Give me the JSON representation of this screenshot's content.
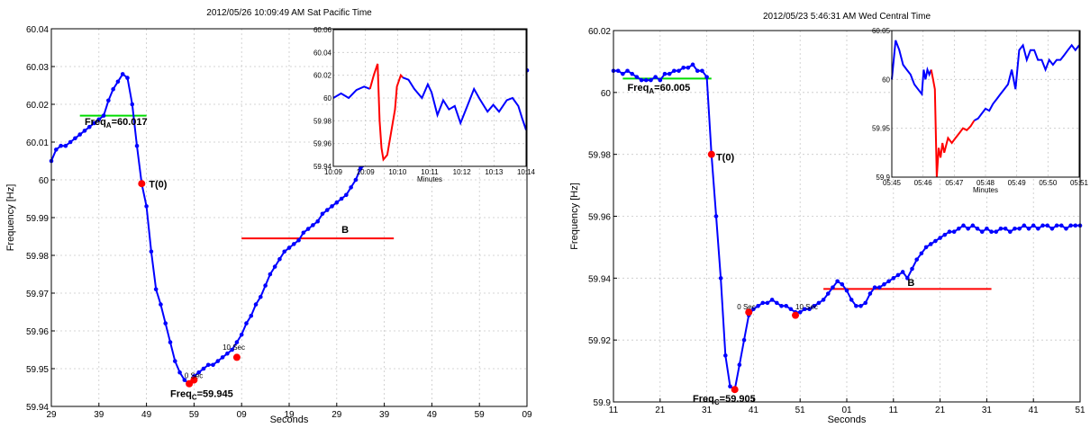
{
  "chart_data": [
    {
      "type": "line",
      "title": "2012/05/26 10:09:49 AM Sat Pacific Time",
      "xlabel": "Seconds",
      "ylabel": "Frequency [Hz]",
      "ylim": [
        59.94,
        60.04
      ],
      "xlim": [
        0,
        100
      ],
      "x_tick_labels": [
        "29",
        "39",
        "49",
        "59",
        "09",
        "19",
        "29",
        "39",
        "49",
        "59",
        "09"
      ],
      "y_tick_labels": [
        "59.94",
        "59.95",
        "59.96",
        "59.97",
        "59.98",
        "59.99",
        "60",
        "60.01",
        "60.02",
        "60.03",
        "60.04"
      ],
      "grid": true,
      "series": [
        {
          "color": "#0000ff",
          "x": [
            0,
            1,
            2,
            3,
            4,
            5,
            6,
            7,
            8,
            9,
            10,
            11,
            12,
            13,
            14,
            15,
            16,
            17,
            18,
            19,
            20,
            21,
            22,
            23,
            24,
            25,
            26,
            27,
            28,
            29,
            30,
            31,
            32,
            33,
            34,
            35,
            36,
            37,
            38,
            39,
            40,
            41,
            42,
            43,
            44,
            45,
            46,
            47,
            48,
            49,
            50,
            51,
            52,
            53,
            54,
            55,
            56,
            57,
            58,
            59,
            60,
            61,
            62,
            63,
            64,
            65,
            66,
            67,
            68,
            69,
            70,
            71,
            72,
            73,
            74,
            75,
            76,
            77,
            78,
            79,
            80,
            81,
            82,
            83,
            84,
            85,
            86,
            87,
            88,
            89,
            90,
            91,
            92,
            93,
            94,
            95,
            96,
            97,
            98,
            99,
            100
          ],
          "y": [
            60.005,
            60.008,
            60.009,
            60.009,
            60.01,
            60.011,
            60.012,
            60.013,
            60.014,
            60.015,
            60.016,
            60.017,
            60.021,
            60.024,
            60.026,
            60.028,
            60.027,
            60.02,
            60.009,
            59.999,
            59.993,
            59.981,
            59.971,
            59.967,
            59.962,
            59.957,
            59.952,
            59.949,
            59.947,
            59.946,
            59.948,
            59.949,
            59.95,
            59.951,
            59.951,
            59.952,
            59.953,
            59.954,
            59.955,
            59.957,
            59.959,
            59.962,
            59.964,
            59.967,
            59.969,
            59.972,
            59.975,
            59.977,
            59.979,
            59.981,
            59.982,
            59.983,
            59.984,
            59.986,
            59.987,
            59.988,
            59.989,
            59.991,
            59.992,
            59.993,
            59.994,
            59.995,
            59.996,
            59.998,
            60.0,
            60.003,
            60.004,
            60.005,
            60.007,
            60.008,
            60.009,
            60.01,
            60.011,
            60.012,
            60.013,
            60.014,
            60.015,
            60.016,
            60.017,
            60.018,
            60.018,
            60.019,
            60.02,
            60.02,
            60.021,
            60.022,
            60.022,
            60.023,
            60.023,
            60.024,
            60.024,
            60.025,
            60.025,
            60.026,
            60.026,
            60.027,
            60.027,
            60.028,
            60.028,
            60.029,
            60.029
          ]
        }
      ],
      "points": [
        {
          "x": 19,
          "y": 59.999
        },
        {
          "x": 29,
          "y": 59.946
        },
        {
          "x": 30,
          "y": 59.947
        },
        {
          "x": 39,
          "y": 59.953
        }
      ],
      "hlines": [
        {
          "x1": 6,
          "x2": 20,
          "y": 60.017,
          "color": "#00dd00"
        },
        {
          "x1": 40,
          "x2": 72,
          "y": 59.9845,
          "color": "#ff0000"
        }
      ],
      "annotations": [
        {
          "text": "Freq",
          "sub": "A",
          "rest": "=60.017",
          "x": 7,
          "y": 60.0145
        },
        {
          "text": "T(0)",
          "x": 20.5,
          "y": 59.998
        },
        {
          "text": "Freq",
          "sub": "C",
          "rest": "=59.945",
          "x": 25,
          "y": 59.9425
        },
        {
          "text": "B",
          "x": 61,
          "y": 59.986
        },
        {
          "text": "0 Sec",
          "small": true,
          "x": 28,
          "y": 59.9475
        },
        {
          "text": "10 Sec",
          "small": true,
          "x": 36,
          "y": 59.955
        }
      ],
      "inset": {
        "xlabel": "Minutes",
        "x_tick_labels": [
          "10:09",
          "10:09",
          "10:10",
          "10:11",
          "10:12",
          "10:13",
          "10:14"
        ],
        "y_tick_labels": [
          "59.94",
          "59.96",
          "59.98",
          "60",
          "60.02",
          "60.04",
          "60.06"
        ],
        "ylim": [
          59.94,
          60.06
        ],
        "xlim": [
          0,
          100
        ],
        "series": [
          {
            "color": "#0000ff",
            "x": [
              0,
              4,
              8,
              12,
              16,
              19
            ],
            "y": [
              60.0,
              60.004,
              60.0,
              60.007,
              60.01,
              60.008
            ]
          },
          {
            "color": "#ff0000",
            "x": [
              19,
              21,
              23,
              24,
              25,
              26,
              28,
              30,
              32,
              33,
              35,
              36
            ],
            "y": [
              60.008,
              60.02,
              60.03,
              59.98,
              59.956,
              59.946,
              59.95,
              59.97,
              59.99,
              60.01,
              60.02,
              60.018
            ]
          },
          {
            "color": "#0000ff",
            "x": [
              36,
              39,
              42,
              46,
              49,
              51,
              54,
              57,
              60,
              63,
              66,
              70,
              73,
              76,
              80,
              83,
              86,
              90,
              93,
              96,
              98,
              100
            ],
            "y": [
              60.018,
              60.016,
              60.008,
              60.0,
              60.012,
              60.005,
              59.985,
              59.998,
              59.99,
              59.993,
              59.978,
              59.995,
              60.008,
              59.999,
              59.988,
              59.994,
              59.988,
              59.998,
              60.0,
              59.993,
              59.982,
              59.972
            ]
          }
        ]
      }
    },
    {
      "type": "line",
      "title": "2012/05/23  5:46:31 AM Wed Central Time",
      "xlabel": "Seconds",
      "ylabel": "Frequency [Hz]",
      "ylim": [
        59.9,
        60.02
      ],
      "xlim": [
        0,
        100
      ],
      "x_tick_labels": [
        "11",
        "21",
        "31",
        "41",
        "51",
        "01",
        "11",
        "21",
        "31",
        "41",
        "51"
      ],
      "y_tick_labels": [
        "59.9",
        "59.92",
        "59.94",
        "59.96",
        "59.98",
        "60",
        "60.02"
      ],
      "grid": true,
      "series": [
        {
          "color": "#0000ff",
          "x": [
            0,
            1,
            2,
            3,
            4,
            5,
            6,
            7,
            8,
            9,
            10,
            11,
            12,
            13,
            14,
            15,
            16,
            17,
            18,
            19,
            20,
            21,
            22,
            23,
            24,
            25,
            26,
            27,
            28,
            29,
            30,
            31,
            32,
            33,
            34,
            35,
            36,
            37,
            38,
            39,
            40,
            41,
            42,
            43,
            44,
            45,
            46,
            47,
            48,
            49,
            50,
            51,
            52,
            53,
            54,
            55,
            56,
            57,
            58,
            59,
            60,
            61,
            62,
            63,
            64,
            65,
            66,
            67,
            68,
            69,
            70,
            71,
            72,
            73,
            74,
            75,
            76,
            77,
            78,
            79,
            80,
            81,
            82,
            83,
            84,
            85,
            86,
            87,
            88,
            89,
            90,
            91,
            92,
            93,
            94,
            95,
            96,
            97,
            98,
            99,
            100
          ],
          "y": [
            60.007,
            60.007,
            60.006,
            60.007,
            60.006,
            60.005,
            60.004,
            60.004,
            60.004,
            60.005,
            60.004,
            60.006,
            60.006,
            60.007,
            60.007,
            60.008,
            60.008,
            60.009,
            60.007,
            60.007,
            60.005,
            59.98,
            59.96,
            59.94,
            59.915,
            59.905,
            59.904,
            59.912,
            59.92,
            59.928,
            59.93,
            59.931,
            59.932,
            59.932,
            59.933,
            59.932,
            59.931,
            59.931,
            59.93,
            59.929,
            59.929,
            59.93,
            59.93,
            59.931,
            59.932,
            59.933,
            59.935,
            59.937,
            59.939,
            59.938,
            59.936,
            59.933,
            59.931,
            59.931,
            59.932,
            59.935,
            59.937,
            59.937,
            59.938,
            59.939,
            59.94,
            59.941,
            59.942,
            59.94,
            59.943,
            59.946,
            59.948,
            59.95,
            59.951,
            59.952,
            59.953,
            59.954,
            59.955,
            59.955,
            59.956,
            59.957,
            59.956,
            59.957,
            59.956,
            59.955,
            59.956,
            59.955,
            59.955,
            59.956,
            59.956,
            59.955,
            59.956,
            59.956,
            59.957,
            59.956,
            59.957,
            59.956,
            59.957,
            59.957,
            59.956,
            59.957,
            59.957,
            59.956,
            59.957,
            59.957,
            59.957
          ]
        }
      ],
      "points": [
        {
          "x": 21,
          "y": 59.98
        },
        {
          "x": 26,
          "y": 59.904
        },
        {
          "x": 29,
          "y": 59.929
        },
        {
          "x": 39,
          "y": 59.928
        }
      ],
      "hlines": [
        {
          "x1": 2,
          "x2": 21,
          "y": 60.0045,
          "color": "#00dd00"
        },
        {
          "x1": 45,
          "x2": 81,
          "y": 59.9365,
          "color": "#ff0000"
        }
      ],
      "annotations": [
        {
          "text": "Freq",
          "sub": "A",
          "rest": "=60.005",
          "x": 3,
          "y": 60.0005
        },
        {
          "text": "T(0)",
          "x": 22,
          "y": 59.978
        },
        {
          "text": "Freq",
          "sub": "C",
          "rest": "=59.905",
          "x": 17,
          "y": 59.9
        },
        {
          "text": "B",
          "x": 63,
          "y": 59.9375
        },
        {
          "text": "0 Sec",
          "small": true,
          "x": 26.5,
          "y": 59.93
        },
        {
          "text": "10 Sec",
          "small": true,
          "x": 39,
          "y": 59.93
        }
      ],
      "inset": {
        "xlabel": "Minutes",
        "x_tick_labels": [
          "05:45",
          "05:46",
          "05:47",
          "05:48",
          "05:49",
          "05:50",
          "05:51"
        ],
        "y_tick_labels": [
          "59.9",
          "59.95",
          "60",
          "60.05"
        ],
        "ylim": [
          59.9,
          60.05
        ],
        "xlim": [
          0,
          100
        ],
        "series": [
          {
            "color": "#0000ff",
            "x": [
              0,
              2,
              4,
              6,
              8,
              10,
              12,
              14,
              16,
              17,
              18,
              19,
              20,
              21
            ],
            "y": [
              60.0,
              60.04,
              60.03,
              60.015,
              60.01,
              60.005,
              59.995,
              59.99,
              59.985,
              60.01,
              60.0,
              60.01,
              60.005,
              60.01
            ]
          },
          {
            "color": "#ff0000",
            "x": [
              21,
              22,
              23,
              24,
              25,
              26,
              27,
              28,
              30,
              32,
              34,
              36,
              38,
              40,
              42,
              44
            ],
            "y": [
              60.01,
              60.0,
              59.99,
              59.9,
              59.93,
              59.92,
              59.935,
              59.925,
              59.94,
              59.935,
              59.94,
              59.945,
              59.95,
              59.948,
              59.952,
              59.958
            ]
          },
          {
            "color": "#0000ff",
            "x": [
              44,
              46,
              48,
              50,
              52,
              54,
              56,
              58,
              60,
              62,
              64,
              66,
              68,
              70,
              72,
              74,
              76,
              78,
              80,
              82,
              84,
              86,
              88,
              90,
              92,
              94,
              96,
              98,
              100
            ],
            "y": [
              59.958,
              59.96,
              59.965,
              59.97,
              59.968,
              59.975,
              59.98,
              59.985,
              59.99,
              59.995,
              60.01,
              59.99,
              60.03,
              60.035,
              60.02,
              60.03,
              60.03,
              60.02,
              60.02,
              60.01,
              60.02,
              60.015,
              60.02,
              60.02,
              60.025,
              60.03,
              60.035,
              60.03,
              60.035
            ]
          }
        ]
      }
    }
  ]
}
